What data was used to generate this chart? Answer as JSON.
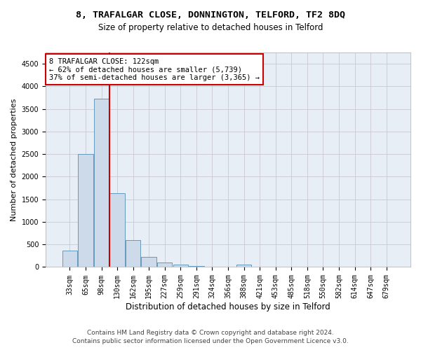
{
  "title_line1": "8, TRAFALGAR CLOSE, DONNINGTON, TELFORD, TF2 8DQ",
  "title_line2": "Size of property relative to detached houses in Telford",
  "xlabel": "Distribution of detached houses by size in Telford",
  "ylabel": "Number of detached properties",
  "bar_labels": [
    "33sqm",
    "65sqm",
    "98sqm",
    "130sqm",
    "162sqm",
    "195sqm",
    "227sqm",
    "259sqm",
    "291sqm",
    "324sqm",
    "356sqm",
    "388sqm",
    "421sqm",
    "453sqm",
    "485sqm",
    "518sqm",
    "550sqm",
    "582sqm",
    "614sqm",
    "647sqm",
    "679sqm"
  ],
  "bar_values": [
    370,
    2510,
    3720,
    1630,
    590,
    230,
    105,
    60,
    30,
    0,
    0,
    55,
    0,
    0,
    0,
    0,
    0,
    0,
    0,
    0,
    0
  ],
  "bar_color": "#ccdaea",
  "bar_edge_color": "#6699bb",
  "vline_color": "#cc0000",
  "ylim": [
    0,
    4750
  ],
  "yticks": [
    0,
    500,
    1000,
    1500,
    2000,
    2500,
    3000,
    3500,
    4000,
    4500
  ],
  "annotation_line1": "8 TRAFALGAR CLOSE: 122sqm",
  "annotation_line2": "← 62% of detached houses are smaller (5,739)",
  "annotation_line3": "37% of semi-detached houses are larger (3,365) →",
  "annotation_box_color": "#ffffff",
  "annotation_box_edge": "#cc0000",
  "footer_line1": "Contains HM Land Registry data © Crown copyright and database right 2024.",
  "footer_line2": "Contains public sector information licensed under the Open Government Licence v3.0.",
  "background_color": "#ffffff",
  "plot_bg_color": "#e8eef5",
  "grid_color": "#c8c8d0",
  "title1_fontsize": 9.5,
  "title2_fontsize": 8.5,
  "xlabel_fontsize": 8.5,
  "ylabel_fontsize": 8,
  "tick_fontsize": 7,
  "annotation_fontsize": 7.5,
  "footer_fontsize": 6.5
}
